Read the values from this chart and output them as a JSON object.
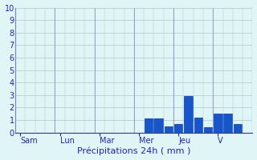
{
  "bar_values": [
    0,
    0,
    0,
    0,
    0,
    0,
    0,
    0,
    0,
    0,
    0,
    0,
    0,
    1.1,
    1.1,
    0.5,
    0.7,
    2.9,
    1.2,
    0.4,
    1.5,
    1.5,
    0.7,
    0
  ],
  "num_bars": 24,
  "day_labels": [
    "Sam",
    "Lun",
    "Mar",
    "Mer",
    "Jeu",
    "V"
  ],
  "day_tick_positions": [
    0.5,
    4.5,
    8.5,
    12.5,
    16.5,
    20.5
  ],
  "day_separator_positions": [
    0,
    4,
    8,
    12,
    16,
    20
  ],
  "xlabel": "Précipitations 24h ( mm )",
  "ylim": [
    0,
    10
  ],
  "yticks": [
    0,
    1,
    2,
    3,
    4,
    5,
    6,
    7,
    8,
    9,
    10
  ],
  "bar_color": "#1655cc",
  "bar_edge_color": "#0033aa",
  "background_color": "#e0f5f5",
  "grid_color": "#aac8cc",
  "axis_color": "#3333aa",
  "text_color": "#2222bb",
  "xlabel_fontsize": 8,
  "tick_fontsize": 7
}
